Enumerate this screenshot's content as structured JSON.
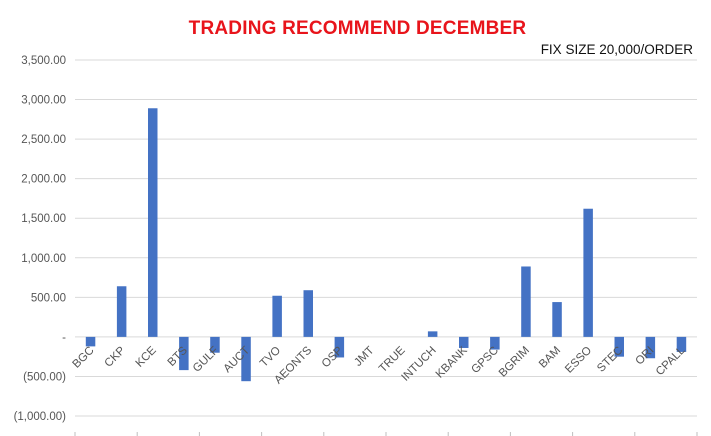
{
  "chart_data": {
    "type": "bar",
    "title": "TRADING RECOMMEND DECEMBER",
    "subtitle": "FIX SIZE 20,000/ORDER",
    "categories": [
      "BGC",
      "CKP",
      "KCE",
      "BTS",
      "GULF",
      "AUCT",
      "TVO",
      "AEONTS",
      "OSP",
      "JMT",
      "TRUE",
      "INTUCH",
      "KBANK",
      "GPSC",
      "BGRIM",
      "BAM",
      "ESSO",
      "STEC",
      "ORI",
      "CPALL"
    ],
    "category_labels": [
      "BGC",
      "CKP",
      "KCE",
      "BTS",
      "GULF",
      "AUCT",
      "TVO",
      "AEONTS",
      "OSP",
      "JMT",
      "TRUE",
      "INTUCH",
      "KBANK",
      "GPSC",
      "BGRIM",
      "BAM",
      "ESSO",
      "STEC",
      "ORI",
      "CPALL"
    ],
    "values": [
      -120,
      640,
      2890,
      -420,
      -200,
      -560,
      520,
      590,
      -260,
      0,
      0,
      70,
      -140,
      -160,
      890,
      440,
      1620,
      -250,
      -270,
      -190
    ],
    "ylim": [
      -1000,
      3500
    ],
    "yticks": [
      3500,
      3000,
      2500,
      2000,
      1500,
      1000,
      500,
      0,
      -500,
      -1000
    ],
    "ytick_labels": [
      "3,500.00",
      "3,000.00",
      "2,500.00",
      "2,000.00",
      "1,500.00",
      "1,000.00",
      "500.00",
      "-",
      "(500.00)",
      "(1,000.00)"
    ],
    "grid": true,
    "bar_color": "#4472c4",
    "grid_color": "#d9d9d9"
  }
}
